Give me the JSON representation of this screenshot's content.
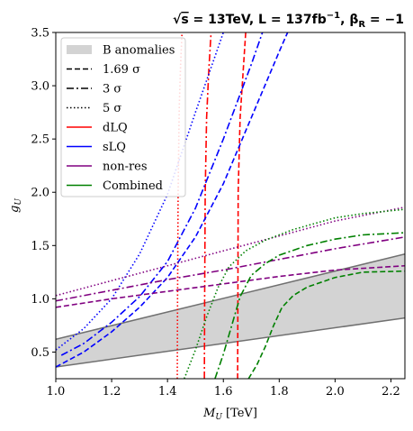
{
  "chart_data": {
    "type": "line",
    "title_parts": {
      "sqrt_s": "s",
      "energy": " = 13TeV, L = 137fb",
      "lumi_exp": "−1",
      "beta": ", β",
      "beta_sub": "R",
      "beta_val": " = −1"
    },
    "xlabel_main": "M",
    "xlabel_sub": "U",
    "xlabel_unit": "[TeV]",
    "ylabel_main": "g",
    "ylabel_sub": "U",
    "xlim": [
      1.0,
      2.25
    ],
    "ylim": [
      0.25,
      3.5
    ],
    "xticks": [
      "1.0",
      "1.2",
      "1.4",
      "1.6",
      "1.8",
      "2.0",
      "2.2"
    ],
    "xtick_values": [
      1.0,
      1.2,
      1.4,
      1.6,
      1.8,
      2.0,
      2.2
    ],
    "yticks": [
      "0.5",
      "1.0",
      "1.5",
      "2.0",
      "2.5",
      "3.0",
      "3.5"
    ],
    "ytick_values": [
      0.5,
      1.0,
      1.5,
      2.0,
      2.5,
      3.0,
      3.5
    ],
    "legend": [
      {
        "label": "B anomalies",
        "kind": "patch",
        "color": "#d3d3d3"
      },
      {
        "label": "1.69 σ",
        "kind": "line",
        "color": "#000000",
        "dash": "dashed"
      },
      {
        "label": "3 σ",
        "kind": "line",
        "color": "#000000",
        "dash": "dashdot"
      },
      {
        "label": "5 σ",
        "kind": "line",
        "color": "#000000",
        "dash": "dotted"
      },
      {
        "label": "dLQ",
        "kind": "line",
        "color": "#ff0000",
        "dash": "solid"
      },
      {
        "label": "sLQ",
        "kind": "line",
        "color": "#0000ff",
        "dash": "solid"
      },
      {
        "label": "non-res",
        "kind": "line",
        "color": "#800080",
        "dash": "solid"
      },
      {
        "label": "Combined",
        "kind": "line",
        "color": "#008000",
        "dash": "solid"
      }
    ],
    "band": {
      "upper": [
        [
          1.0,
          0.62
        ],
        [
          2.25,
          1.42
        ]
      ],
      "lower": [
        [
          1.0,
          0.36
        ],
        [
          2.25,
          0.82
        ]
      ],
      "fill": "#d3d3d3",
      "edge": "#707070"
    },
    "series": [
      {
        "color": "#ff0000",
        "dash": "dashed",
        "points": [
          [
            1.651,
            0.25
          ],
          [
            1.652,
            1.0
          ],
          [
            1.653,
            2.0
          ],
          [
            1.66,
            2.7
          ],
          [
            1.67,
            3.1
          ],
          [
            1.68,
            3.5
          ]
        ]
      },
      {
        "color": "#ff0000",
        "dash": "dashdot",
        "points": [
          [
            1.532,
            0.25
          ],
          [
            1.533,
            1.0
          ],
          [
            1.535,
            2.0
          ],
          [
            1.54,
            2.7
          ],
          [
            1.548,
            3.15
          ],
          [
            1.556,
            3.5
          ]
        ]
      },
      {
        "color": "#ff0000",
        "dash": "dotted",
        "points": [
          [
            1.435,
            0.25
          ],
          [
            1.436,
            1.0
          ],
          [
            1.438,
            2.0
          ],
          [
            1.442,
            2.8
          ],
          [
            1.447,
            3.2
          ],
          [
            1.452,
            3.5
          ]
        ]
      },
      {
        "color": "#0000ff",
        "dash": "dashed",
        "points": [
          [
            1.0,
            0.36
          ],
          [
            1.1,
            0.5
          ],
          [
            1.2,
            0.69
          ],
          [
            1.3,
            0.92
          ],
          [
            1.4,
            1.2
          ],
          [
            1.5,
            1.58
          ],
          [
            1.6,
            2.08
          ],
          [
            1.7,
            2.7
          ],
          [
            1.8,
            3.32
          ],
          [
            1.83,
            3.5
          ]
        ]
      },
      {
        "color": "#0000ff",
        "dash": "dashdot",
        "points": [
          [
            1.02,
            0.47
          ],
          [
            1.1,
            0.58
          ],
          [
            1.2,
            0.78
          ],
          [
            1.3,
            1.02
          ],
          [
            1.4,
            1.35
          ],
          [
            1.5,
            1.85
          ],
          [
            1.6,
            2.5
          ],
          [
            1.7,
            3.2
          ],
          [
            1.74,
            3.5
          ]
        ]
      },
      {
        "color": "#0000ff",
        "dash": "dotted",
        "points": [
          [
            1.0,
            0.52
          ],
          [
            1.1,
            0.72
          ],
          [
            1.2,
            1.0
          ],
          [
            1.3,
            1.42
          ],
          [
            1.4,
            1.98
          ],
          [
            1.5,
            2.75
          ],
          [
            1.6,
            3.5
          ]
        ]
      },
      {
        "color": "#800080",
        "dash": "dashed",
        "points": [
          [
            1.0,
            0.92
          ],
          [
            1.2,
            1.0
          ],
          [
            1.4,
            1.07
          ],
          [
            1.6,
            1.14
          ],
          [
            1.8,
            1.21
          ],
          [
            2.0,
            1.27
          ],
          [
            2.25,
            1.31
          ]
        ]
      },
      {
        "color": "#800080",
        "dash": "dashdot",
        "points": [
          [
            1.0,
            0.98
          ],
          [
            1.2,
            1.08
          ],
          [
            1.4,
            1.18
          ],
          [
            1.6,
            1.27
          ],
          [
            1.8,
            1.37
          ],
          [
            2.0,
            1.47
          ],
          [
            2.25,
            1.58
          ]
        ]
      },
      {
        "color": "#800080",
        "dash": "dotted",
        "points": [
          [
            1.0,
            1.03
          ],
          [
            1.2,
            1.17
          ],
          [
            1.4,
            1.31
          ],
          [
            1.6,
            1.45
          ],
          [
            1.8,
            1.59
          ],
          [
            2.0,
            1.73
          ],
          [
            2.25,
            1.86
          ]
        ]
      },
      {
        "color": "#008000",
        "dash": "dashed",
        "points": [
          [
            1.69,
            0.25
          ],
          [
            1.72,
            0.38
          ],
          [
            1.75,
            0.55
          ],
          [
            1.78,
            0.75
          ],
          [
            1.81,
            0.92
          ],
          [
            1.85,
            1.03
          ],
          [
            1.9,
            1.11
          ],
          [
            2.0,
            1.2
          ],
          [
            2.1,
            1.25
          ],
          [
            2.25,
            1.26
          ]
        ]
      },
      {
        "color": "#008000",
        "dash": "dashdot",
        "points": [
          [
            1.57,
            0.25
          ],
          [
            1.6,
            0.48
          ],
          [
            1.63,
            0.75
          ],
          [
            1.66,
            1.02
          ],
          [
            1.7,
            1.22
          ],
          [
            1.75,
            1.33
          ],
          [
            1.8,
            1.41
          ],
          [
            1.9,
            1.5
          ],
          [
            2.0,
            1.56
          ],
          [
            2.1,
            1.6
          ],
          [
            2.25,
            1.62
          ]
        ]
      },
      {
        "color": "#008000",
        "dash": "dotted",
        "points": [
          [
            1.46,
            0.25
          ],
          [
            1.5,
            0.52
          ],
          [
            1.54,
            0.83
          ],
          [
            1.58,
            1.1
          ],
          [
            1.62,
            1.3
          ],
          [
            1.68,
            1.45
          ],
          [
            1.75,
            1.55
          ],
          [
            1.85,
            1.65
          ],
          [
            2.0,
            1.76
          ],
          [
            2.1,
            1.8
          ],
          [
            2.25,
            1.84
          ]
        ]
      }
    ]
  }
}
